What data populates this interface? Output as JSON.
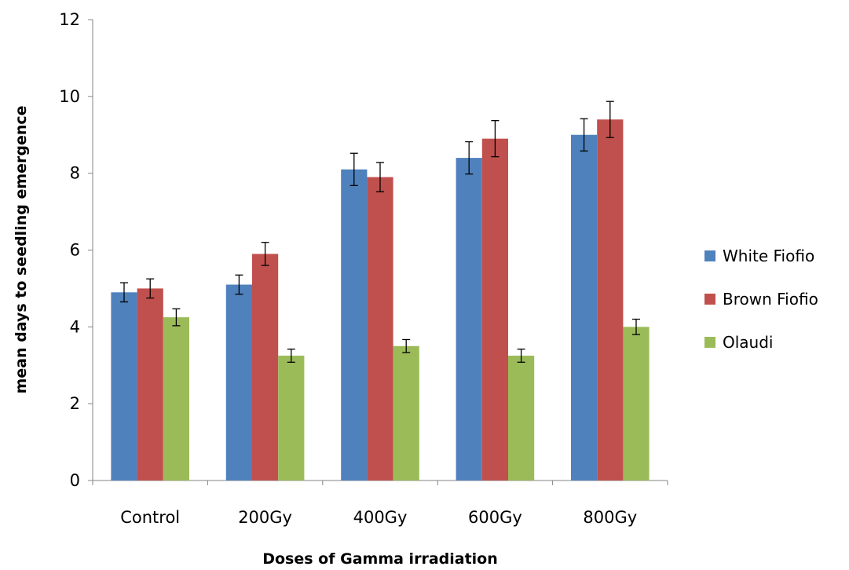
{
  "chart_data": {
    "type": "bar",
    "title": "",
    "xlabel": "Doses of Gamma irradiation",
    "ylabel": "mean days to seedling emergence",
    "ylim": [
      0,
      12
    ],
    "yticks": [
      0,
      2,
      4,
      6,
      8,
      10,
      12
    ],
    "grid": false,
    "legend_position": "right",
    "error_bars": true,
    "categories": [
      "Control",
      "200Gy",
      "400Gy",
      "600Gy",
      "800Gy"
    ],
    "series": [
      {
        "name": "White Fiofio",
        "color": "#4F81BD",
        "values": [
          4.9,
          5.1,
          8.1,
          8.4,
          9.0
        ],
        "errors": [
          0.25,
          0.25,
          0.42,
          0.42,
          0.42
        ]
      },
      {
        "name": "Brown Fiofio",
        "color": "#C0504D",
        "values": [
          5.0,
          5.9,
          7.9,
          8.9,
          9.4
        ],
        "errors": [
          0.25,
          0.3,
          0.38,
          0.47,
          0.47
        ]
      },
      {
        "name": "Olaudi",
        "color": "#9BBB59",
        "values": [
          4.25,
          3.25,
          3.5,
          3.25,
          4.0
        ],
        "errors": [
          0.22,
          0.17,
          0.17,
          0.17,
          0.2
        ]
      }
    ]
  }
}
